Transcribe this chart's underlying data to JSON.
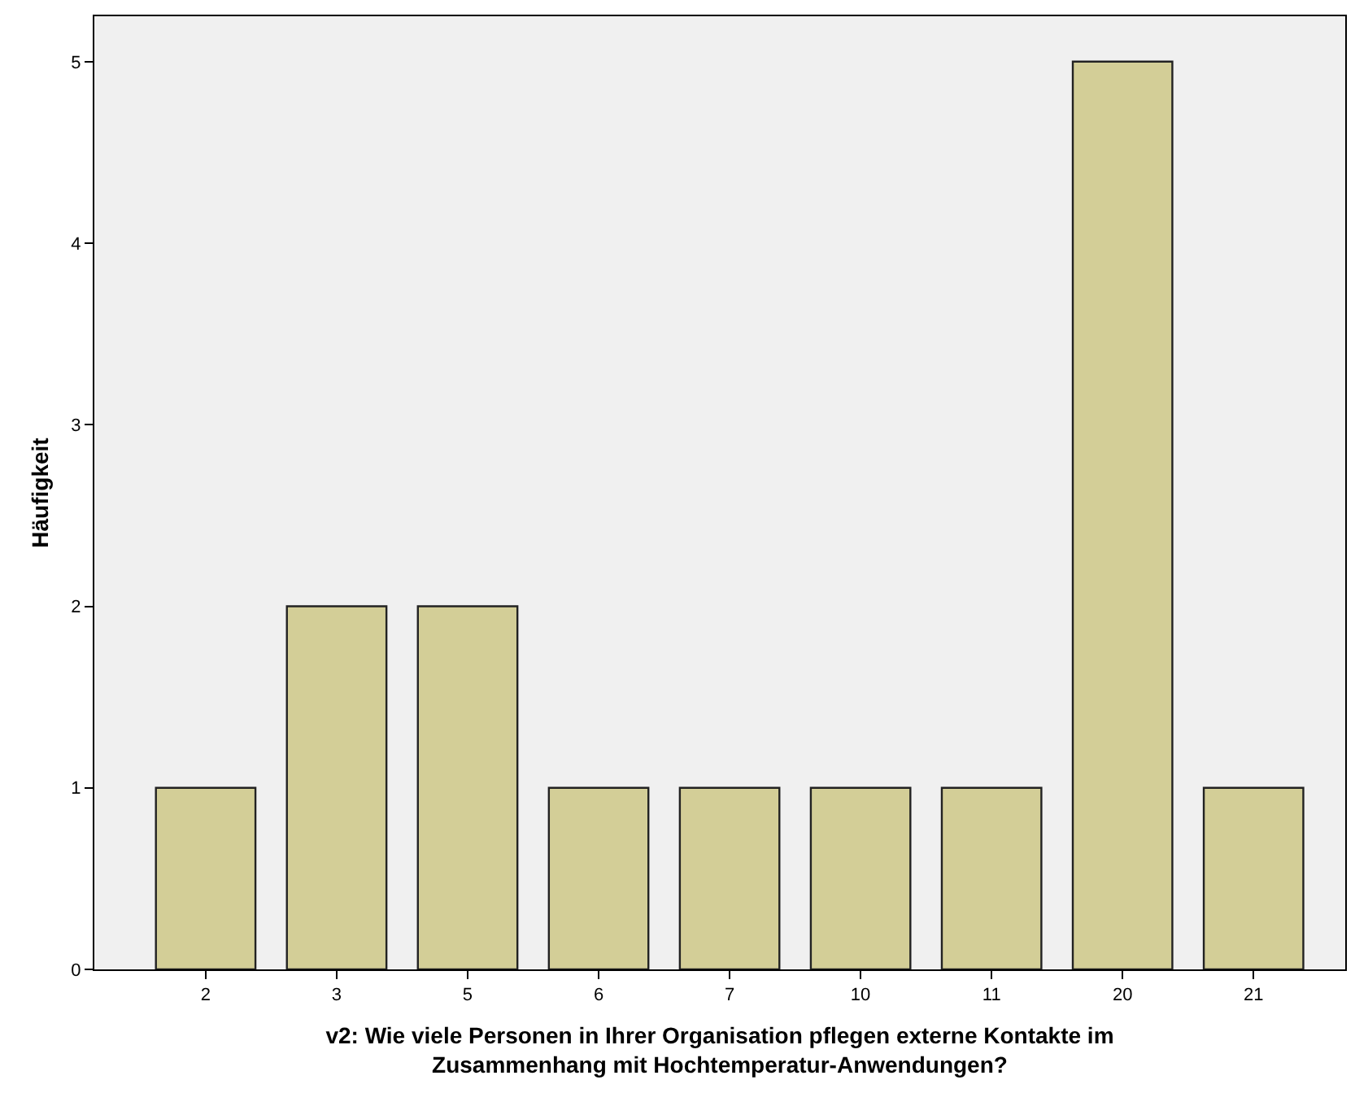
{
  "chart_data": {
    "type": "bar",
    "xlabel": "v2: Wie viele Personen in Ihrer Organisation pflegen externe Kontakte im Zusammenhang mit Hochtemperatur-Anwendungen?",
    "ylabel": "Häufigkeit",
    "categories": [
      "2",
      "3",
      "5",
      "6",
      "7",
      "10",
      "11",
      "20",
      "21"
    ],
    "values": [
      1,
      2,
      2,
      1,
      1,
      1,
      1,
      5,
      1
    ],
    "color": "#d3ce97",
    "ylim": [
      0,
      5.25
    ],
    "yticks": [
      0,
      1,
      2,
      3,
      4,
      5
    ],
    "grid": false
  }
}
